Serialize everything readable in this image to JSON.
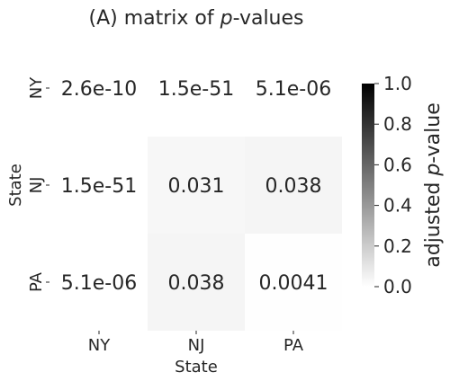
{
  "chart_data": {
    "type": "heatmap",
    "title_prefix": "(A) matrix of ",
    "title_italic": "p",
    "title_suffix": "-values",
    "xlabel": "State",
    "ylabel": "State",
    "rows": [
      "NY",
      "NJ",
      "PA"
    ],
    "cols": [
      "NY",
      "NJ",
      "PA"
    ],
    "values": [
      [
        2.6e-10,
        1.5e-51,
        5.1e-06
      ],
      [
        1.5e-51,
        0.031,
        0.038
      ],
      [
        5.1e-06,
        0.038,
        0.0041
      ]
    ],
    "labels": [
      [
        "2.6e-10",
        "1.5e-51",
        "5.1e-06"
      ],
      [
        "1.5e-51",
        "0.031",
        "0.038"
      ],
      [
        "5.1e-06",
        "0.038",
        "0.0041"
      ]
    ],
    "colormap": "Greys",
    "vmin": 0.0,
    "vmax": 1.0,
    "colorbar": {
      "ticks": [
        "0.0",
        "0.2",
        "0.4",
        "0.6",
        "0.8",
        "1.0"
      ],
      "label_prefix": "adjusted ",
      "label_italic": "p",
      "label_suffix": "-value",
      "color_low": "#ffffff",
      "color_high": "#000000"
    },
    "text_color": "#262626"
  }
}
